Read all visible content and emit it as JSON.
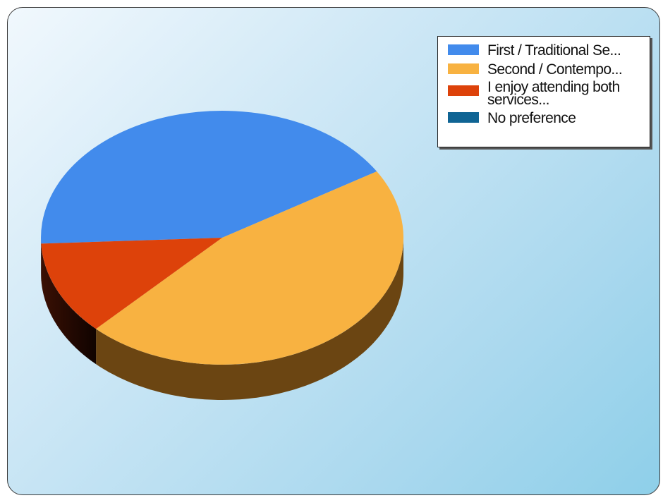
{
  "chart_data": {
    "type": "pie",
    "title": "",
    "style": "3d",
    "slices": [
      {
        "label": "First / Traditional Se...",
        "value": 42,
        "color": "#428bec"
      },
      {
        "label": "Second / Contempo...",
        "value": 46,
        "color": "#f8b241"
      },
      {
        "label": "I enjoy attending both\nservices...",
        "value": 12,
        "color": "#dd420a"
      },
      {
        "label": "No preference",
        "value": 0,
        "color": "#0f6494"
      }
    ],
    "legend": {
      "position": "top-right"
    }
  }
}
